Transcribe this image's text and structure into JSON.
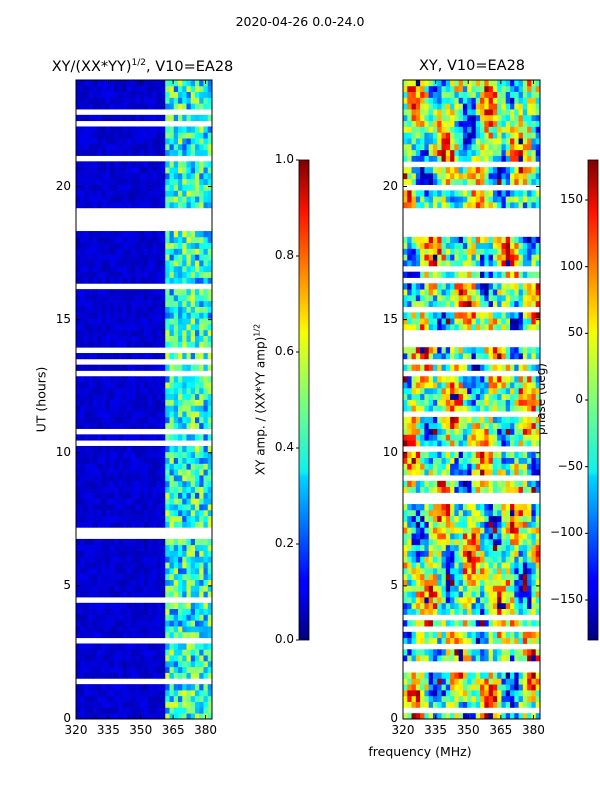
{
  "suptitle": "2020-04-26 0.0-24.0",
  "chart_data": [
    {
      "type": "heatmap",
      "title": "XY/(XX*YY)^{1/2}, V10=EA28",
      "title_main": "XY/(XX*YY)",
      "title_sup": "1/2",
      "title_tail": ", V10=EA28",
      "xlabel": "",
      "ylabel": "UT (hours)",
      "xlim": [
        320,
        383
      ],
      "ylim": [
        0,
        24
      ],
      "xticks": [
        "320",
        "335",
        "350",
        "365",
        "380"
      ],
      "xtick_values": [
        320,
        335,
        350,
        365,
        380
      ],
      "yticks": [
        "0",
        "5",
        "10",
        "15",
        "20"
      ],
      "ytick_values": [
        0,
        5,
        10,
        15,
        20
      ],
      "colormap": "jet",
      "colorbar": {
        "label": "XY amp. / (XX*YY amp)^{1/2}",
        "label_main": "XY amp. / (XX*YY amp)",
        "label_sup": "1/2",
        "range": [
          0.0,
          1.0
        ],
        "ticks": [
          "0.0",
          "0.2",
          "0.4",
          "0.6",
          "0.8",
          "1.0"
        ],
        "tick_values": [
          0.0,
          0.2,
          0.4,
          0.6,
          0.8,
          1.0
        ]
      },
      "dominant_value": 0.05,
      "bright_band_mhz": [
        361,
        383
      ],
      "bright_band_value_range": [
        0.3,
        0.6
      ],
      "gap_hours": [
        18.3,
        19.1
      ]
    },
    {
      "type": "heatmap",
      "title": "XY, V10=EA28",
      "xlabel": "frequency (MHz)",
      "ylabel": "",
      "xlim": [
        320,
        383
      ],
      "ylim": [
        0,
        24
      ],
      "xticks": [
        "320",
        "335",
        "350",
        "365",
        "380"
      ],
      "xtick_values": [
        320,
        335,
        350,
        365,
        380
      ],
      "yticks": [
        "0",
        "5",
        "10",
        "15",
        "20"
      ],
      "ytick_values": [
        0,
        5,
        10,
        15,
        20
      ],
      "colormap": "jet",
      "colorbar": {
        "label": "phase (deg)",
        "range": [
          -180,
          180
        ],
        "ticks": [
          "−150",
          "−100",
          "−50",
          "0",
          "50",
          "100",
          "150"
        ],
        "tick_values": [
          -150,
          -100,
          -50,
          0,
          50,
          100,
          150
        ]
      },
      "gap_hours": [
        18.3,
        19.1
      ]
    }
  ]
}
